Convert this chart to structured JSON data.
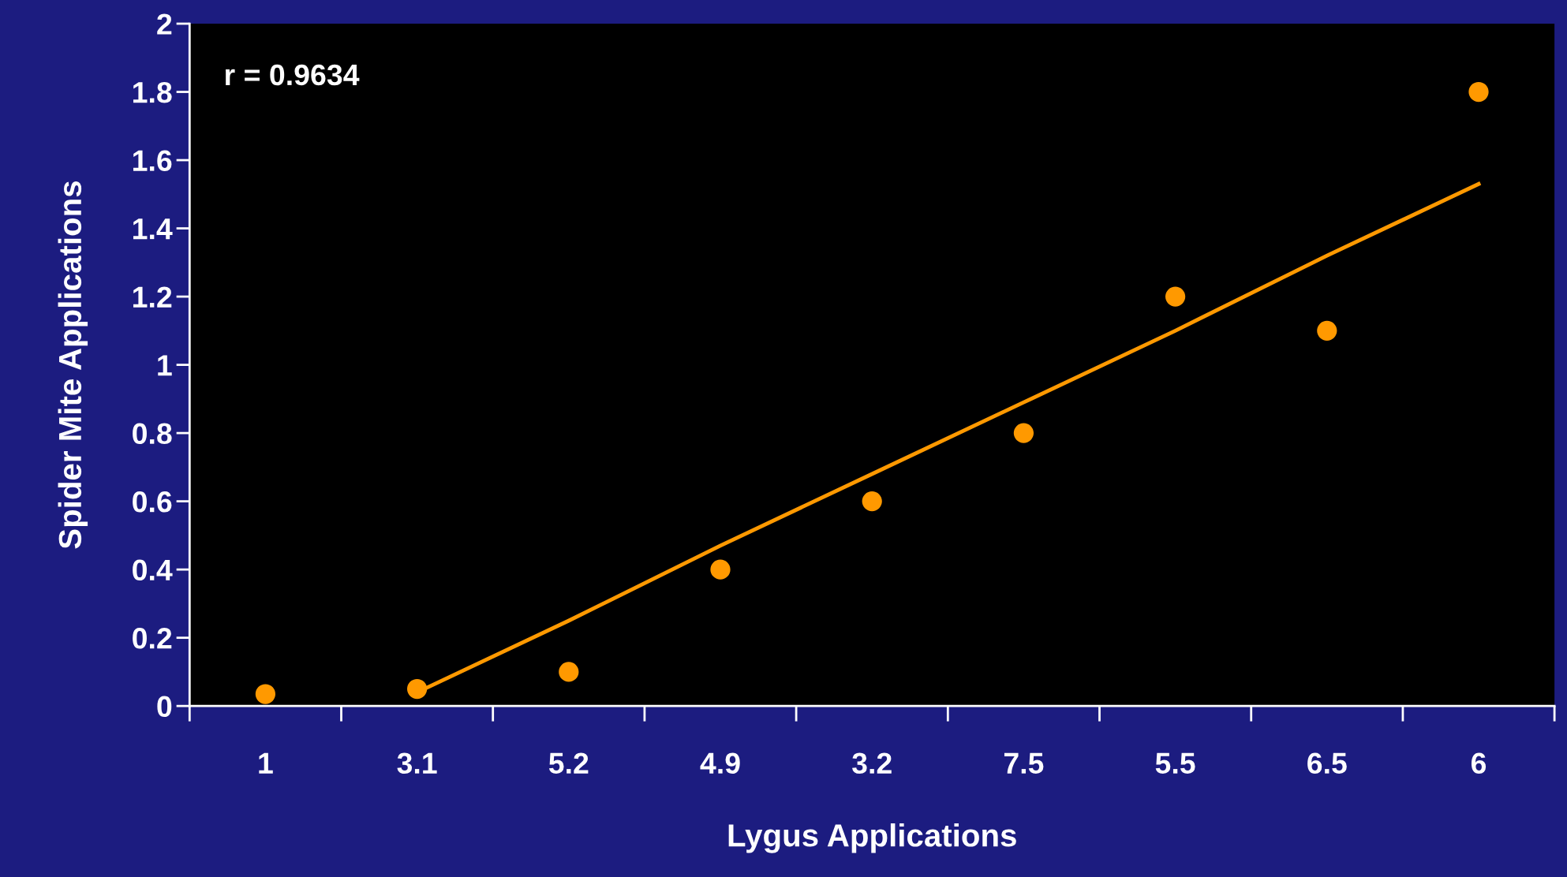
{
  "chart_data": {
    "type": "scatter",
    "xlabel": "Lygus Applications",
    "ylabel": "Spider Mite Applications",
    "categories": [
      "1",
      "3.1",
      "5.2",
      "4.9",
      "3.2",
      "7.5",
      "5.5",
      "6.5",
      "6"
    ],
    "series": [
      {
        "type": "scatter",
        "color": "#ff9900",
        "marker": "circle",
        "values": [
          0.035,
          0.05,
          0.1,
          0.4,
          0.6,
          0.8,
          1.2,
          1.1,
          1.8
        ]
      },
      {
        "type": "line",
        "color": "#ff9900",
        "marker": "none",
        "line_style": "solid",
        "values": [
          null,
          0.04,
          0.25,
          0.47,
          0.68,
          0.89,
          1.1,
          1.32,
          1.53
        ]
      }
    ],
    "ylim": [
      0,
      2
    ],
    "yticks": [
      0,
      0.2,
      0.4,
      0.6,
      0.8,
      1,
      1.2,
      1.4,
      1.6,
      1.8,
      2
    ],
    "annotations": [
      "r = 0.9634"
    ],
    "grid": false,
    "legend": false
  }
}
